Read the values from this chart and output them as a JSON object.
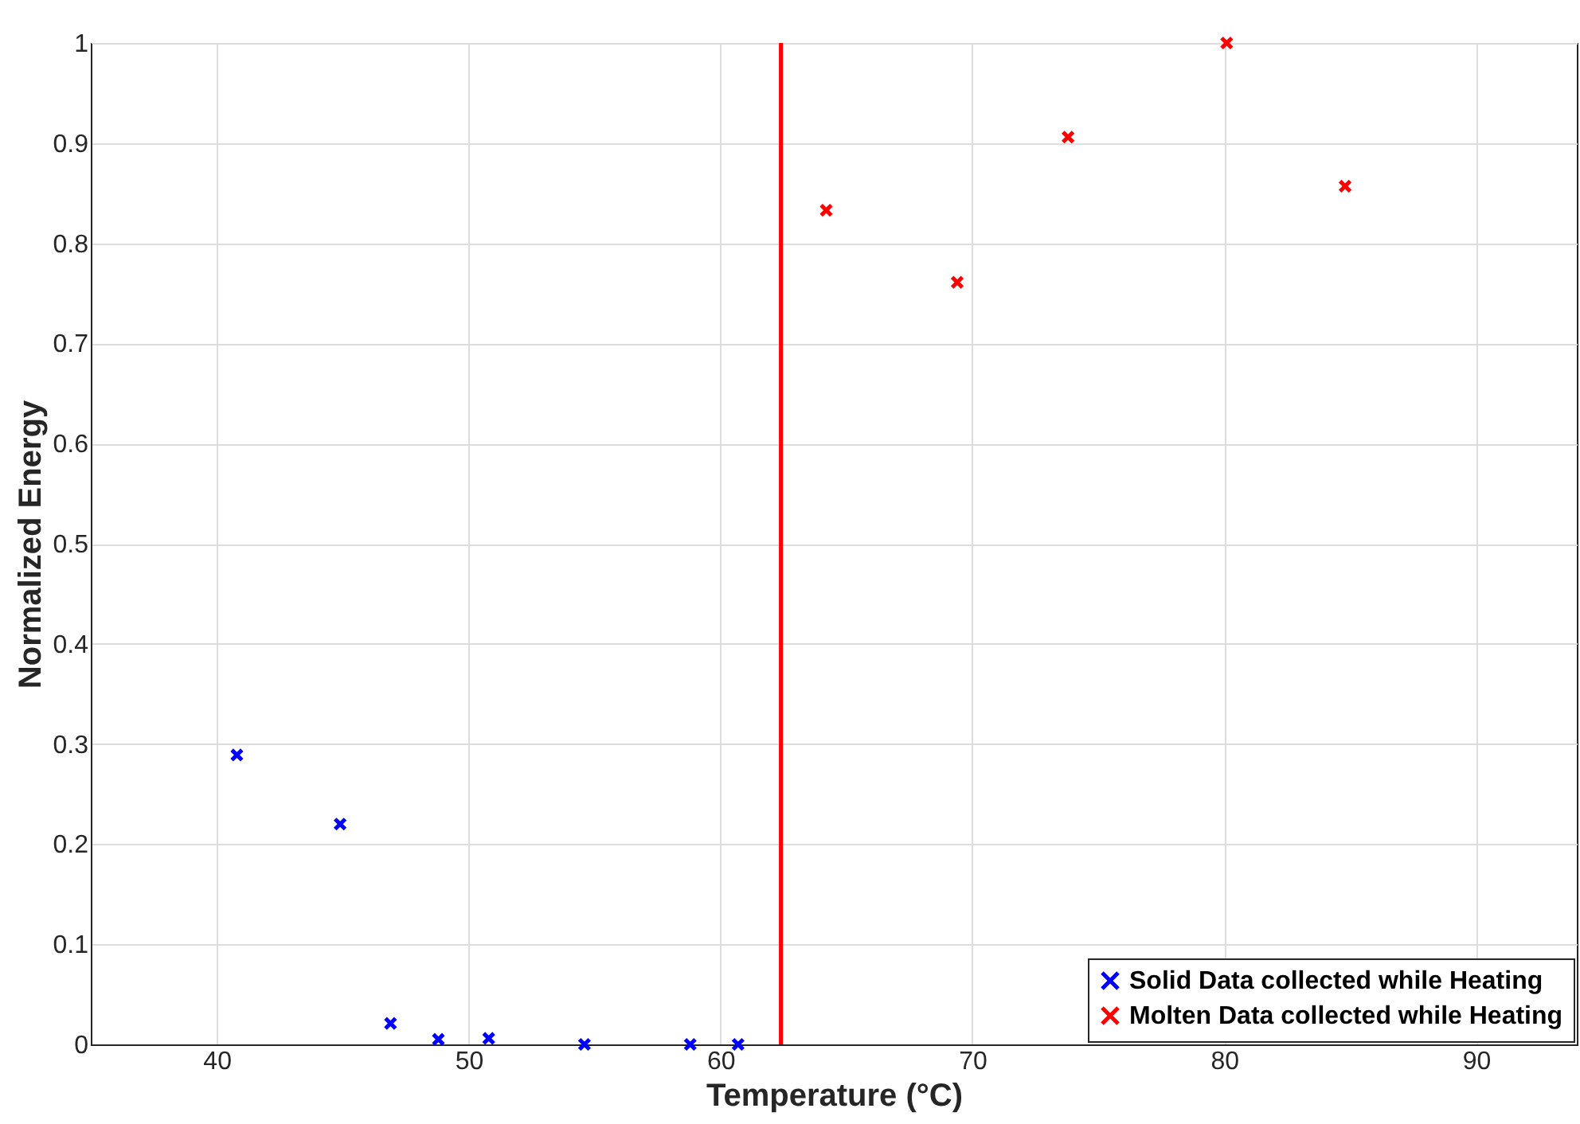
{
  "chart_data": {
    "type": "scatter",
    "xlabel": "Temperature (°C)",
    "ylabel": "Normalized Energy",
    "series": [
      {
        "name": "Solid Data collected while Heating",
        "color": "#0000ff",
        "x": [
          40.8,
          44.9,
          46.9,
          48.8,
          50.8,
          54.6,
          58.8,
          60.7
        ],
        "values": [
          0.289,
          0.22,
          0.021,
          0.005,
          0.006,
          0,
          0,
          0
        ]
      },
      {
        "name": "Molten Data collected while Heating",
        "color": "#ff0000",
        "x": [
          64.2,
          69.4,
          73.8,
          80.1,
          84.8
        ],
        "values": [
          0.833,
          0.761,
          0.906,
          1.0,
          0.857
        ]
      }
    ],
    "ref_lines": [
      {
        "axis": "x",
        "value": 62.4,
        "color": "#ff0000",
        "line_style": "solid"
      }
    ],
    "xlim": [
      35,
      94
    ],
    "xticks": [
      40,
      50,
      60,
      70,
      80,
      90
    ],
    "ylim": [
      0,
      1
    ],
    "yticks": [
      0,
      0.1,
      0.2,
      0.3,
      0.4,
      0.5,
      0.6,
      0.7,
      0.8,
      0.9,
      1
    ],
    "grid": true,
    "legend": "bottom right",
    "marker": "cross"
  }
}
